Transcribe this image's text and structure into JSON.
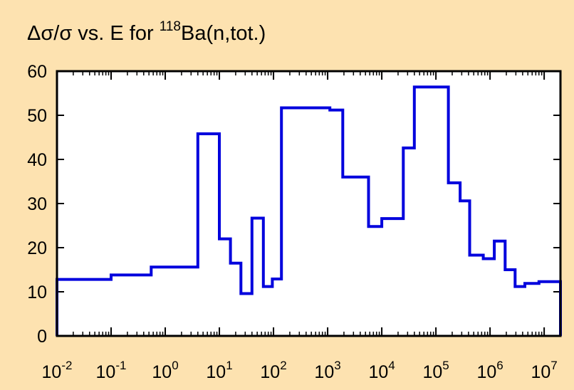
{
  "chart_data": {
    "type": "line",
    "title_main": "Δσ/σ vs. E for ",
    "title_isotope_mass": "118",
    "title_reaction": "Ba(n,tot.)",
    "xlabel": "",
    "ylabel": "",
    "x_scale": "log",
    "xlim": [
      0.01,
      20000000
    ],
    "ylim": [
      0,
      60
    ],
    "grid": false,
    "legend": "none",
    "line_color": "#0000dd",
    "frame_color": "#000000",
    "background_color": "#fde2b0",
    "plot_area_color": "#ffffff",
    "y_ticks": [
      0,
      10,
      20,
      30,
      40,
      50,
      60
    ],
    "y_tick_labels": [
      "0",
      "10",
      "20",
      "30",
      "40",
      "50",
      "60"
    ],
    "x_ticks": [
      {
        "base": "10",
        "exp": "-2",
        "value": 0.01
      },
      {
        "base": "10",
        "exp": "-1",
        "value": 0.1
      },
      {
        "base": "10",
        "exp": "0",
        "value": 1
      },
      {
        "base": "10",
        "exp": "1",
        "value": 10
      },
      {
        "base": "10",
        "exp": "2",
        "value": 100
      },
      {
        "base": "10",
        "exp": "3",
        "value": 1000
      },
      {
        "base": "10",
        "exp": "4",
        "value": 10000
      },
      {
        "base": "10",
        "exp": "5",
        "value": 100000
      },
      {
        "base": "10",
        "exp": "6",
        "value": 1000000
      },
      {
        "base": "10",
        "exp": "7",
        "value": 10000000
      }
    ],
    "series": [
      {
        "style": "step",
        "bins": [
          {
            "e_low": 0.01,
            "e_high": 0.1,
            "value": 12.8
          },
          {
            "e_low": 0.1,
            "e_high": 0.55,
            "value": 13.8
          },
          {
            "e_low": 0.55,
            "e_high": 4.0,
            "value": 15.6
          },
          {
            "e_low": 4.0,
            "e_high": 10.0,
            "value": 45.8
          },
          {
            "e_low": 10.0,
            "e_high": 16.0,
            "value": 22.0
          },
          {
            "e_low": 16.0,
            "e_high": 25.0,
            "value": 16.5
          },
          {
            "e_low": 25.0,
            "e_high": 40.0,
            "value": 9.6
          },
          {
            "e_low": 40.0,
            "e_high": 65.0,
            "value": 26.7
          },
          {
            "e_low": 65.0,
            "e_high": 95.0,
            "value": 11.2
          },
          {
            "e_low": 95.0,
            "e_high": 140.0,
            "value": 12.9
          },
          {
            "e_low": 140.0,
            "e_high": 1100.0,
            "value": 51.7
          },
          {
            "e_low": 1100.0,
            "e_high": 1900.0,
            "value": 51.2
          },
          {
            "e_low": 1900.0,
            "e_high": 5700.0,
            "value": 36.0
          },
          {
            "e_low": 5700.0,
            "e_high": 10000.0,
            "value": 24.8
          },
          {
            "e_low": 10000.0,
            "e_high": 25000.0,
            "value": 26.6
          },
          {
            "e_low": 25000.0,
            "e_high": 40000.0,
            "value": 42.6
          },
          {
            "e_low": 40000.0,
            "e_high": 170000.0,
            "value": 56.4
          },
          {
            "e_low": 170000.0,
            "e_high": 280000.0,
            "value": 34.7
          },
          {
            "e_low": 280000.0,
            "e_high": 420000.0,
            "value": 30.6
          },
          {
            "e_low": 420000.0,
            "e_high": 750000.0,
            "value": 18.3
          },
          {
            "e_low": 750000.0,
            "e_high": 1200000.0,
            "value": 17.5
          },
          {
            "e_low": 1200000.0,
            "e_high": 1900000.0,
            "value": 21.5
          },
          {
            "e_low": 1900000.0,
            "e_high": 2900000.0,
            "value": 15.0
          },
          {
            "e_low": 2900000.0,
            "e_high": 4400000.0,
            "value": 11.2
          },
          {
            "e_low": 4400000.0,
            "e_high": 8000000.0,
            "value": 11.9
          },
          {
            "e_low": 8000000.0,
            "e_high": 12000000.0,
            "value": 12.3
          },
          {
            "e_low": 12000000.0,
            "e_high": 20000000.0,
            "value": 12.3
          }
        ]
      }
    ]
  }
}
